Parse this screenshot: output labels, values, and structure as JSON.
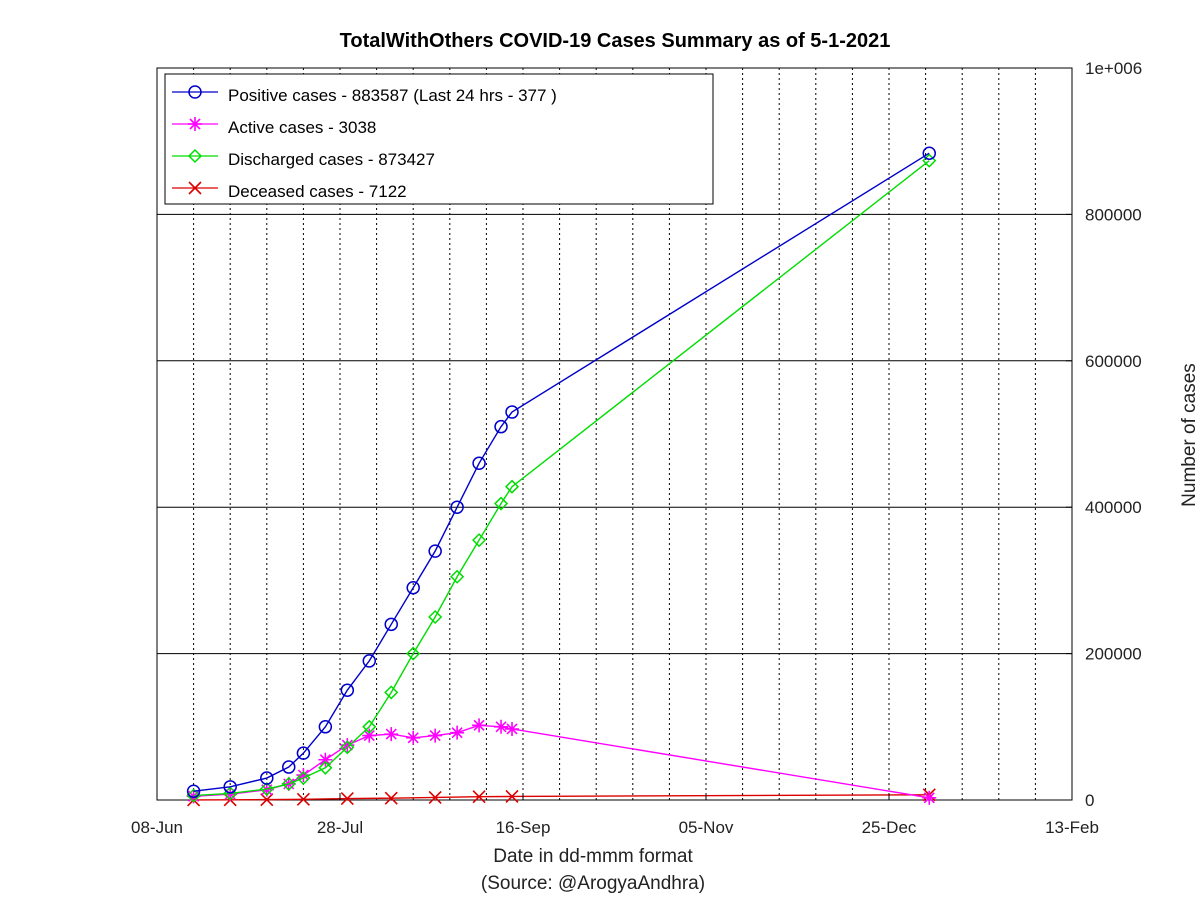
{
  "chart_data": {
    "type": "line",
    "title": "TotalWithOthers COVID-19 Cases Summary as of 5-1-2021",
    "xlabel": "Date in dd-mmm format",
    "xlabel_note": "(Source: @ArogyaAndhra)",
    "ylabel": "Number of cases",
    "x_ticks": [
      "08-Jun",
      "28-Jul",
      "16-Sep",
      "05-Nov",
      "25-Dec",
      "13-Feb"
    ],
    "y_ticks": [
      "0",
      "200000",
      "400000",
      "600000",
      "800000",
      "1e+006"
    ],
    "ylim": [
      0,
      1000000
    ],
    "grid": true,
    "legend_position": "top-left",
    "series": [
      {
        "name": "Positive cases - 883587 (Last 24 hrs - 377 )",
        "color": "#0000cc",
        "marker": "circle",
        "x": [
          "2020-06-18",
          "2020-06-28",
          "2020-07-08",
          "2020-07-14",
          "2020-07-18",
          "2020-07-24",
          "2020-07-30",
          "2020-08-05",
          "2020-08-11",
          "2020-08-17",
          "2020-08-23",
          "2020-08-29",
          "2020-09-04",
          "2020-09-10",
          "2020-09-13",
          "2021-01-05"
        ],
        "values": [
          12000,
          18000,
          30000,
          45000,
          64000,
          100000,
          150000,
          190000,
          240000,
          290000,
          340000,
          400000,
          460000,
          510000,
          530000,
          883587
        ]
      },
      {
        "name": "Active cases - 3038",
        "color": "#ff00ff",
        "marker": "star",
        "x": [
          "2020-06-18",
          "2020-06-28",
          "2020-07-08",
          "2020-07-14",
          "2020-07-18",
          "2020-07-24",
          "2020-07-30",
          "2020-08-05",
          "2020-08-11",
          "2020-08-17",
          "2020-08-23",
          "2020-08-29",
          "2020-09-04",
          "2020-09-10",
          "2020-09-13",
          "2021-01-05"
        ],
        "values": [
          5000,
          8000,
          14000,
          22000,
          34000,
          55000,
          75000,
          88000,
          90000,
          85000,
          88000,
          92000,
          102000,
          100000,
          97000,
          3038
        ]
      },
      {
        "name": "Discharged cases - 873427",
        "color": "#00dd00",
        "marker": "diamond",
        "x": [
          "2020-06-18",
          "2020-06-28",
          "2020-07-08",
          "2020-07-14",
          "2020-07-18",
          "2020-07-24",
          "2020-07-30",
          "2020-08-05",
          "2020-08-11",
          "2020-08-17",
          "2020-08-23",
          "2020-08-29",
          "2020-09-04",
          "2020-09-10",
          "2020-09-13",
          "2021-01-05"
        ],
        "values": [
          6000,
          9000,
          15000,
          22000,
          30000,
          44000,
          72000,
          100000,
          147000,
          200000,
          250000,
          305000,
          355000,
          405000,
          428000,
          873427
        ]
      },
      {
        "name": "Deceased cases - 7122",
        "color": "#dd0000",
        "marker": "x",
        "x": [
          "2020-06-18",
          "2020-06-28",
          "2020-07-08",
          "2020-07-18",
          "2020-07-30",
          "2020-08-11",
          "2020-08-23",
          "2020-09-04",
          "2020-09-13",
          "2021-01-05"
        ],
        "values": [
          100,
          300,
          500,
          1000,
          2000,
          2500,
          3500,
          4500,
          4800,
          7122
        ]
      }
    ]
  }
}
